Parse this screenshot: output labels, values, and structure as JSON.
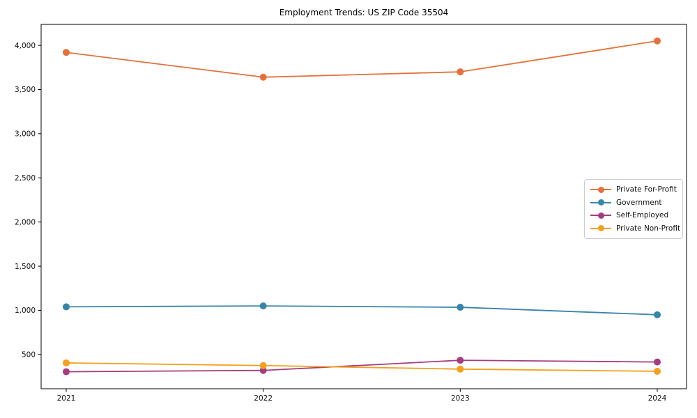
{
  "chart_data": {
    "type": "line",
    "title": "Employment Trends: US ZIP Code 35504",
    "x": [
      2021,
      2022,
      2023,
      2024
    ],
    "xtick_labels": [
      "2021",
      "2022",
      "2023",
      "2024"
    ],
    "series": [
      {
        "name": "Private For-Profit",
        "color": "#E5703A",
        "values": [
          3920,
          3640,
          3700,
          4050
        ]
      },
      {
        "name": "Government",
        "color": "#3785A8",
        "values": [
          1040,
          1050,
          1035,
          950
        ]
      },
      {
        "name": "Self-Employed",
        "color": "#A53C80",
        "values": [
          305,
          320,
          435,
          415
        ]
      },
      {
        "name": "Private Non-Profit",
        "color": "#F5A01E",
        "values": [
          405,
          375,
          335,
          310
        ]
      }
    ],
    "xlabel": "",
    "ylabel": "",
    "ylim": [
      112.5,
      4237.5
    ],
    "yticks": [
      500,
      1000,
      1500,
      2000,
      2500,
      3000,
      3500,
      4000
    ],
    "ytick_labels": [
      "500",
      "1,000",
      "1,500",
      "2,000",
      "2,500",
      "3,000",
      "3,500",
      "4,000"
    ],
    "grid": false,
    "marker": "circle",
    "legend_position": "center right"
  }
}
